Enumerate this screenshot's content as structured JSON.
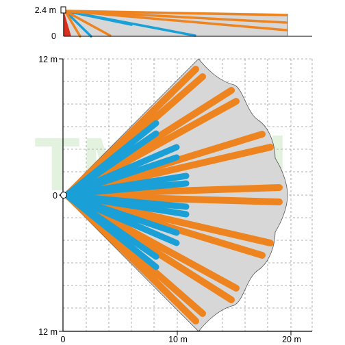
{
  "watermark_text": "TME.pl",
  "side_view": {
    "y_labels": [
      "2.4 m",
      "0"
    ]
  },
  "top_view": {
    "y_labels": [
      "12 m",
      "0",
      "12 m"
    ],
    "x_labels": [
      "0",
      "10 m",
      "20 m"
    ]
  },
  "colors": {
    "long_beam": "#ee8420",
    "short_beam": "#1aa0d6",
    "coverage_fill": "#d7d7d7",
    "creep_zone": "#d8301c",
    "grid": "#9a9a9a",
    "watermark": "#e2f2de"
  }
}
